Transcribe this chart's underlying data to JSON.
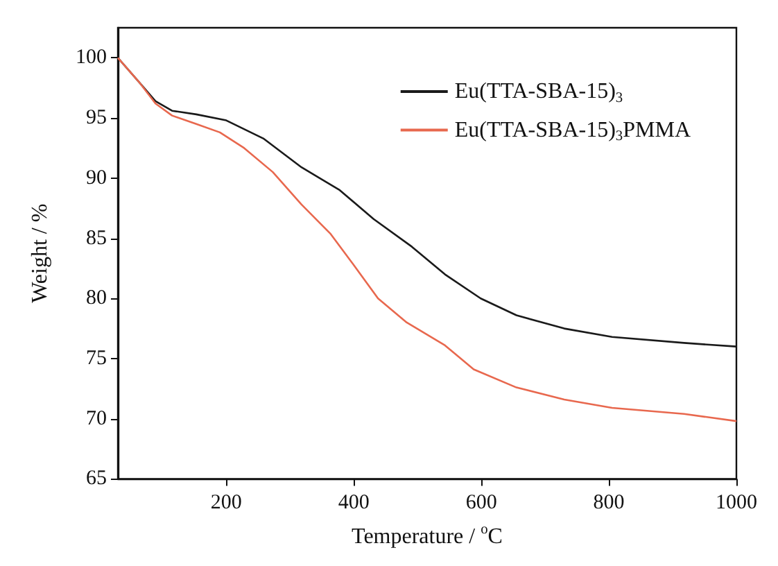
{
  "chart_data": {
    "type": "line",
    "xlabel": "Temperature / $^{o}$C",
    "ylabel": "Weight / %",
    "xlim": [
      30,
      1000
    ],
    "ylim": [
      65,
      102.5
    ],
    "xticks": [
      200,
      400,
      600,
      800,
      1000
    ],
    "yticks": [
      65,
      70,
      75,
      80,
      85,
      90,
      95,
      100
    ],
    "legend": "top right",
    "grid": false,
    "marker": "none",
    "line_style": "solid",
    "series": [
      {
        "name": "Eu(TTA-SBA-15)$_{3}$",
        "color": "#1a1a1a",
        "x": [
          30,
          63,
          89,
          115,
          153,
          200,
          258,
          318,
          378,
          431,
          491,
          543,
          599,
          655,
          730,
          805,
          918,
          1000
        ],
        "values": [
          100,
          98,
          96.4,
          95.6,
          95.3,
          94.8,
          93.3,
          90.9,
          89.0,
          86.6,
          84.3,
          82.0,
          80.0,
          78.6,
          77.5,
          76.8,
          76.3,
          76.0
        ]
      },
      {
        "name": "Eu(TTA-SBA-15)$_{3}$PMMA",
        "color": "#e8684e",
        "x": [
          30,
          63,
          89,
          115,
          153,
          190,
          228,
          273,
          318,
          363,
          401,
          438,
          483,
          543,
          588,
          655,
          730,
          805,
          918,
          1000
        ],
        "values": [
          100,
          98,
          96.2,
          95.2,
          94.5,
          93.8,
          92.5,
          90.5,
          87.8,
          85.4,
          82.7,
          80.0,
          78.0,
          76.1,
          74.1,
          72.6,
          71.6,
          70.9,
          70.4,
          69.8
        ]
      }
    ]
  }
}
